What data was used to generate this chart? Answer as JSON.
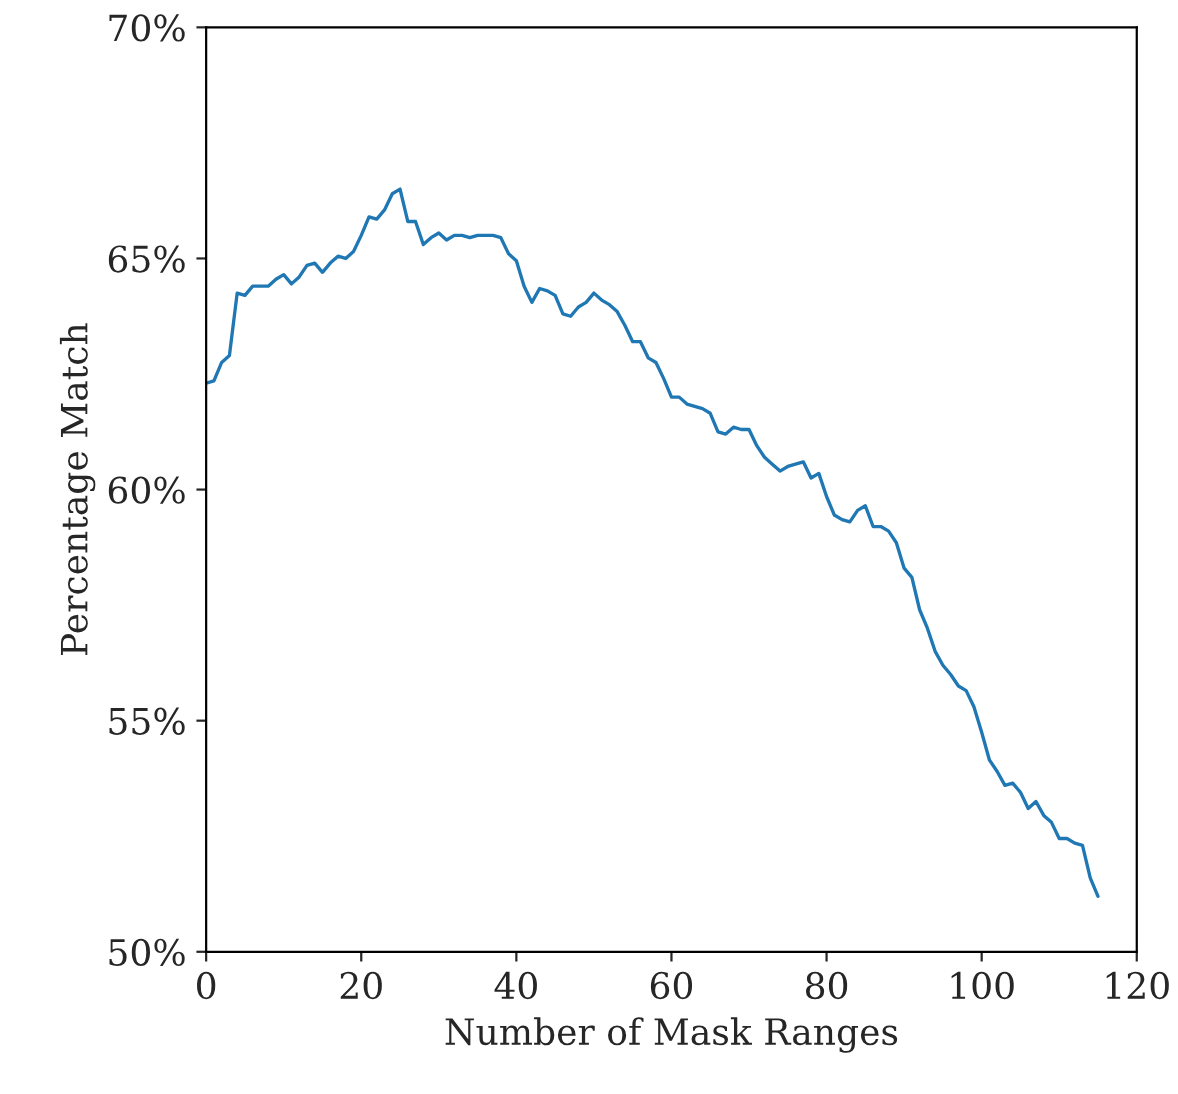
{
  "chart_data": {
    "type": "line",
    "xlabel": "Number of Mask Ranges",
    "ylabel": "Percentage Match",
    "x": [
      0,
      1,
      2,
      3,
      4,
      5,
      6,
      7,
      8,
      9,
      10,
      11,
      12,
      13,
      14,
      15,
      16,
      17,
      18,
      19,
      20,
      21,
      22,
      23,
      24,
      25,
      26,
      27,
      28,
      29,
      30,
      31,
      32,
      33,
      34,
      35,
      36,
      37,
      38,
      39,
      40,
      41,
      42,
      43,
      44,
      45,
      46,
      47,
      48,
      49,
      50,
      51,
      52,
      53,
      54,
      55,
      56,
      57,
      58,
      59,
      60,
      61,
      62,
      63,
      64,
      65,
      66,
      67,
      68,
      69,
      70,
      71,
      72,
      73,
      74,
      75,
      76,
      77,
      78,
      79,
      80,
      81,
      82,
      83,
      84,
      85,
      86,
      87,
      88,
      89,
      90,
      91,
      92,
      93,
      94,
      95,
      96,
      97,
      98,
      99,
      100,
      101,
      102,
      103,
      104,
      105,
      106,
      107,
      108,
      109,
      110,
      111,
      112,
      113,
      114,
      115
    ],
    "series": [
      {
        "color": "#1f77b4",
        "values": [
          62.3,
          62.35,
          62.75,
          62.9,
          64.25,
          64.2,
          64.4,
          64.4,
          64.4,
          64.55,
          64.65,
          64.45,
          64.6,
          64.85,
          64.9,
          64.7,
          64.9,
          65.05,
          65.0,
          65.15,
          65.5,
          65.9,
          65.85,
          66.05,
          66.4,
          66.5,
          65.8,
          65.8,
          65.3,
          65.45,
          65.55,
          65.4,
          65.5,
          65.5,
          65.45,
          65.5,
          65.5,
          65.5,
          65.45,
          65.1,
          64.95,
          64.4,
          64.05,
          64.35,
          64.3,
          64.2,
          63.8,
          63.75,
          63.95,
          64.05,
          64.25,
          64.1,
          64.0,
          63.85,
          63.55,
          63.2,
          63.2,
          62.85,
          62.75,
          62.4,
          62.0,
          62.0,
          61.85,
          61.8,
          61.75,
          61.65,
          61.25,
          61.2,
          61.35,
          61.3,
          61.3,
          60.95,
          60.7,
          60.55,
          60.4,
          60.5,
          60.55,
          60.6,
          60.25,
          60.35,
          59.85,
          59.45,
          59.35,
          59.3,
          59.55,
          59.65,
          59.2,
          59.2,
          59.1,
          58.85,
          58.3,
          58.1,
          57.4,
          57.0,
          56.5,
          56.2,
          56.0,
          55.75,
          55.65,
          55.3,
          54.75,
          54.15,
          53.9,
          53.6,
          53.65,
          53.45,
          53.1,
          53.25,
          52.95,
          52.8,
          52.45,
          52.45,
          52.35,
          52.3,
          51.6,
          51.2
        ]
      }
    ],
    "xlim": [
      0,
      120
    ],
    "xticks": [
      0,
      20,
      40,
      60,
      80,
      100,
      120
    ],
    "ylim": [
      50,
      70
    ],
    "yticks": [
      {
        "value": 50,
        "label": "50%"
      },
      {
        "value": 55,
        "label": "55%"
      },
      {
        "value": 60,
        "label": "60%"
      },
      {
        "value": 65,
        "label": "65%"
      },
      {
        "value": 70,
        "label": "70%"
      }
    ],
    "grid": false,
    "marker": "none",
    "line_style": "solid"
  }
}
